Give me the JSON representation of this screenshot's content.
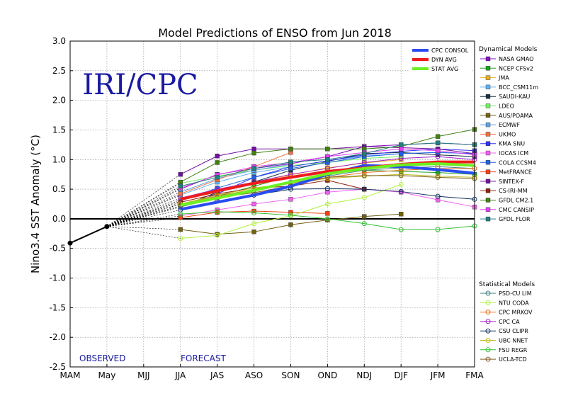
{
  "chart_data": {
    "type": "line",
    "title": "Model Predictions of ENSO from Jun 2018",
    "ylabel": "Nino3.4 SST Anomaly (°C)",
    "watermark": "IRI/CPC",
    "observed_label": "OBSERVED",
    "forecast_label": "FORECAST",
    "categories": [
      "MAM",
      "May",
      "MJJ",
      "JJA",
      "JAS",
      "ASO",
      "SON",
      "OND",
      "NDJ",
      "DJF",
      "JFM",
      "FMA"
    ],
    "yticks": [
      3.0,
      2.5,
      2.0,
      1.5,
      1.0,
      0.5,
      0.0,
      -0.5,
      -1.0,
      -1.5,
      -2.0,
      -2.5
    ],
    "ylim": [
      -2.5,
      3.0
    ],
    "grid": true,
    "observed": {
      "x": [
        "MAM",
        "May"
      ],
      "values": [
        -0.41,
        -0.13
      ]
    },
    "summary_series": [
      {
        "name": "CPC CONSOL",
        "color": "#2a4cf0",
        "values": [
          0.16,
          0.28,
          0.4,
          0.55,
          0.75,
          0.9,
          0.88,
          0.83,
          0.77
        ]
      },
      {
        "name": "DYN AVG",
        "color": "#ee1c1c",
        "values": [
          0.33,
          0.47,
          0.6,
          0.7,
          0.8,
          0.86,
          0.92,
          0.96,
          0.96
        ]
      },
      {
        "name": "STAT AVG",
        "color": "#6df020",
        "values": [
          0.23,
          0.35,
          0.48,
          0.62,
          0.76,
          0.85,
          0.91,
          0.93,
          0.9
        ]
      }
    ],
    "dynamical_title": "Dynamical Models",
    "dynamical_models": [
      {
        "name": "NASA GMAO",
        "color": "#8010c0",
        "values": [
          0.5,
          0.75,
          0.85,
          0.93,
          1.05,
          1.22,
          1.25,
          1.28,
          1.25
        ]
      },
      {
        "name": "NCEP CFSv2",
        "color": "#20a020",
        "values": [
          0.25,
          0.38,
          0.55,
          0.72,
          0.78,
          0.82,
          0.8,
          0.78,
          0.75
        ]
      },
      {
        "name": "JMA",
        "color": "#e8b020",
        "values": [
          0.32,
          0.48,
          0.62,
          0.74,
          0.86,
          0.94,
          1.0,
          null,
          null
        ]
      },
      {
        "name": "BCC_CSM11m",
        "color": "#60b0f0",
        "values": [
          0.4,
          0.62,
          0.78,
          0.88,
          0.98,
          1.06,
          1.1,
          1.12,
          1.1
        ]
      },
      {
        "name": "SAUDI-KAU",
        "color": "#1a3040",
        "values": [
          0.2,
          0.45,
          0.62,
          0.82,
          0.97,
          1.1,
          1.12,
          1.08,
          1.05
        ]
      },
      {
        "name": "LDEO",
        "color": "#70f060",
        "values": [
          0.6,
          0.72,
          0.82,
          0.9,
          0.95,
          1.02,
          1.05,
          null,
          null
        ]
      },
      {
        "name": "AUS/POAMA",
        "color": "#706010",
        "values": [
          -0.18,
          -0.26,
          -0.22,
          -0.1,
          -0.02,
          0.04,
          0.08,
          null,
          null
        ]
      },
      {
        "name": "ECMWF",
        "color": "#60a0e0",
        "values": [
          0.45,
          0.68,
          0.82,
          0.92,
          null,
          null,
          null,
          null,
          null
        ]
      },
      {
        "name": "UKMO",
        "color": "#f07040",
        "values": [
          0.42,
          0.66,
          0.88,
          1.12,
          null,
          null,
          null,
          null,
          null
        ]
      },
      {
        "name": "KMA SNU",
        "color": "#3030f0",
        "values": [
          0.2,
          0.42,
          0.7,
          0.88,
          0.98,
          1.08,
          1.14,
          1.18,
          1.15
        ]
      },
      {
        "name": "IOCAS ICM",
        "color": "#f060f0",
        "values": [
          0.05,
          0.15,
          0.25,
          0.33,
          0.45,
          0.5,
          0.45,
          0.32,
          0.2
        ]
      },
      {
        "name": "COLA CCSM4",
        "color": "#2060e0",
        "values": [
          0.3,
          0.52,
          0.7,
          0.85,
          0.95,
          1.05,
          1.1,
          1.12,
          1.1
        ]
      },
      {
        "name": "MetFRANCE",
        "color": "#f04010",
        "values": [
          0.02,
          0.11,
          0.13,
          0.11,
          0.09,
          null,
          null,
          null,
          null
        ]
      },
      {
        "name": "SINTEX-F",
        "color": "#7010a0",
        "values": [
          0.75,
          1.06,
          1.18,
          1.18,
          1.18,
          1.22,
          1.2,
          1.18,
          1.1
        ]
      },
      {
        "name": "CS-IRI-MM",
        "color": "#902010",
        "values": [
          0.28,
          0.42,
          0.52,
          0.55,
          0.65,
          0.5,
          null,
          null,
          null
        ]
      },
      {
        "name": "GFDL CM2.1",
        "color": "#408010",
        "values": [
          0.62,
          0.95,
          1.11,
          1.18,
          1.18,
          1.18,
          1.22,
          1.39,
          1.51
        ]
      },
      {
        "name": "CMC CANSIP",
        "color": "#e040f0",
        "values": [
          0.52,
          0.74,
          0.88,
          0.95,
          1.05,
          1.12,
          1.18,
          1.15,
          1.08
        ]
      },
      {
        "name": "GFDL FLOR",
        "color": "#208080",
        "values": [
          0.55,
          0.7,
          0.85,
          0.96,
          1.0,
          1.1,
          1.25,
          1.28,
          1.25
        ]
      }
    ],
    "statistical_title": "Statistical Models",
    "statistical_models": [
      {
        "name": "PSD-CU LIM",
        "color": "#408080",
        "values": [
          0.2,
          0.35,
          0.48,
          0.62,
          0.72,
          0.82,
          0.86,
          0.88,
          0.85
        ]
      },
      {
        "name": "NTU CODA",
        "color": "#b0f040",
        "values": [
          -0.33,
          -0.28,
          -0.08,
          0.05,
          0.25,
          0.36,
          0.58,
          null,
          null
        ]
      },
      {
        "name": "CPC MRKOV",
        "color": "#f07020",
        "values": [
          0.25,
          0.38,
          0.5,
          0.6,
          0.7,
          0.78,
          0.82,
          0.85,
          0.85
        ]
      },
      {
        "name": "CPC CA",
        "color": "#a020c0",
        "values": [
          0.35,
          0.5,
          0.62,
          0.75,
          0.85,
          0.95,
          1.02,
          1.05,
          1.0
        ]
      },
      {
        "name": "CSU CLIPR",
        "color": "#103060",
        "values": [
          0.15,
          0.3,
          0.4,
          0.5,
          0.51,
          0.5,
          0.46,
          0.38,
          0.33
        ]
      },
      {
        "name": "UBC NNET",
        "color": "#c0c020",
        "values": [
          0.25,
          0.4,
          0.52,
          0.6,
          0.68,
          0.72,
          0.75,
          0.72,
          0.7
        ]
      },
      {
        "name": "FSU REGR",
        "color": "#30c030",
        "values": [
          0.08,
          0.12,
          0.1,
          0.06,
          0.0,
          -0.08,
          -0.18,
          -0.18,
          -0.12
        ]
      },
      {
        "name": "UCLA-TCD",
        "color": "#806020",
        "values": [
          0.22,
          0.36,
          0.44,
          0.56,
          0.7,
          0.73,
          0.73,
          0.7,
          0.68
        ]
      }
    ]
  }
}
